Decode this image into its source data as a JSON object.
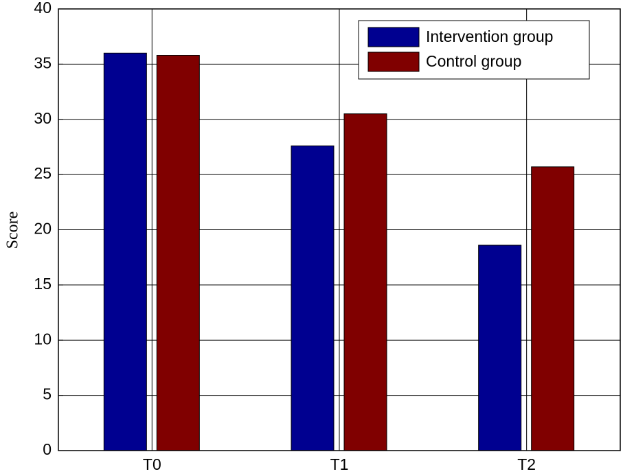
{
  "chart_data": {
    "type": "bar",
    "y_label": "Score",
    "categories": [
      "T0",
      "T1",
      "T2"
    ],
    "series": [
      {
        "name": "Intervention group",
        "color": "#000090",
        "values": [
          36.0,
          27.6,
          18.6
        ]
      },
      {
        "name": "Control group",
        "color": "#800000",
        "values": [
          35.8,
          30.5,
          25.7
        ]
      }
    ],
    "ylim": [
      0,
      40
    ],
    "yticks": [
      0,
      5,
      10,
      15,
      20,
      25,
      30,
      35,
      40
    ],
    "grid": true,
    "legend": "upper right"
  }
}
